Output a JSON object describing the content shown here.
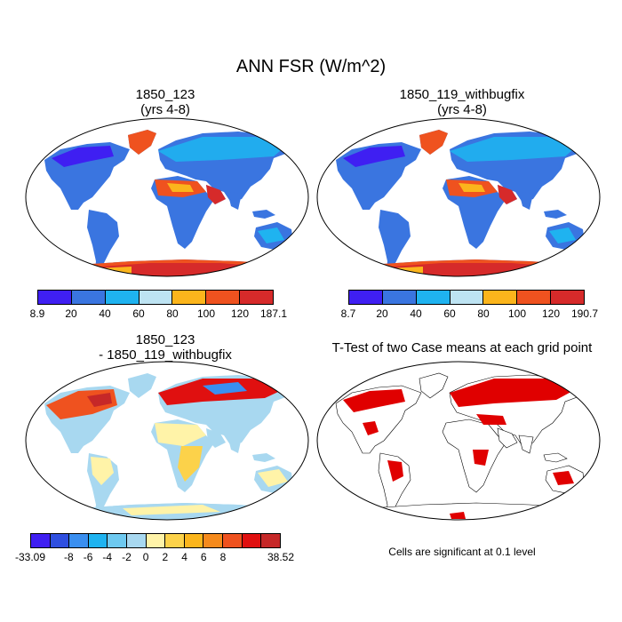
{
  "title": "ANN FSR (W/m^2)",
  "panels": {
    "top_left": {
      "title_line1": "1850_123",
      "title_line2": "(yrs 4-8)",
      "colorbar": {
        "colors": [
          "#3f1ff2",
          "#3a75e0",
          "#1fb3f0",
          "#bde3f2",
          "#fbb51c",
          "#ef521f",
          "#d62a2a"
        ],
        "labels": [
          "8.9",
          "20",
          "40",
          "60",
          "80",
          "100",
          "120",
          "187.1"
        ]
      }
    },
    "top_right": {
      "title_line1": "1850_119_withbugfix",
      "title_line2": "(yrs 4-8)",
      "colorbar": {
        "colors": [
          "#3f1ff2",
          "#3a75e0",
          "#1fb3f0",
          "#bde3f2",
          "#fbb51c",
          "#ef521f",
          "#d62a2a"
        ],
        "labels": [
          "8.7",
          "20",
          "40",
          "60",
          "80",
          "100",
          "120",
          "190.7"
        ]
      }
    },
    "bottom_left": {
      "title_line1": "1850_123",
      "title_line2": "- 1850_119_withbugfix",
      "colorbar": {
        "colors": [
          "#3f1ff2",
          "#2f4fe0",
          "#3a8ff0",
          "#1fb3f0",
          "#6ec9f0",
          "#a8d8f0",
          "#fff3a8",
          "#fcd24a",
          "#fbb51c",
          "#f58a1c",
          "#ef521f",
          "#e01010",
          "#c62828"
        ],
        "labels": [
          "-33.09",
          "-8",
          "-6",
          "-4",
          "-2",
          "0",
          "2",
          "4",
          "6",
          "8",
          "38.52"
        ]
      }
    },
    "bottom_right": {
      "title": "T-Test of two Case means at each grid point",
      "note": "Cells are significant at 0.1 level",
      "significance_color": "#e00000"
    }
  }
}
